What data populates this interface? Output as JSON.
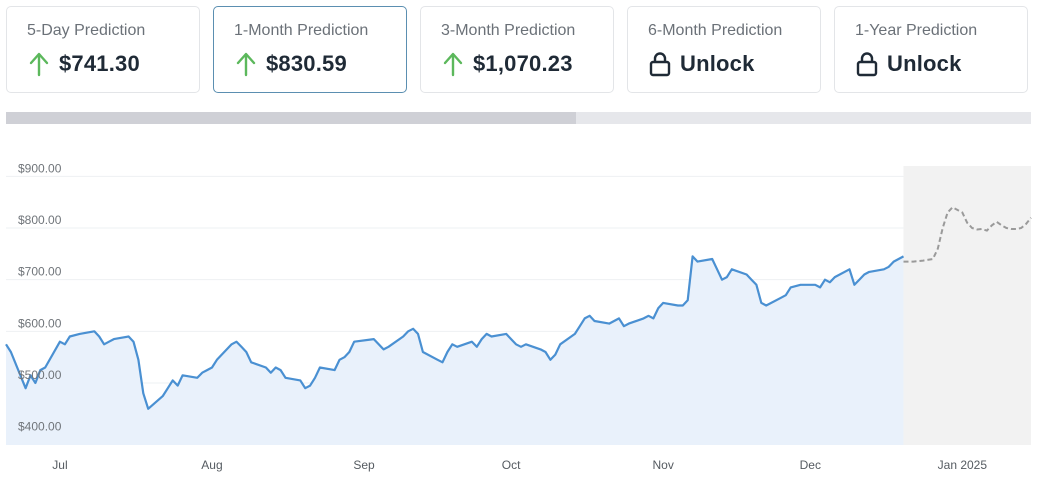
{
  "cards": [
    {
      "label": "5-Day Prediction",
      "value": "$741.30",
      "icon": "arrow-up-icon",
      "active": false
    },
    {
      "label": "1-Month Prediction",
      "value": "$830.59",
      "icon": "arrow-up-icon",
      "active": true
    },
    {
      "label": "3-Month Prediction",
      "value": "$1,070.23",
      "icon": "arrow-up-icon",
      "active": false
    },
    {
      "label": "6-Month Prediction",
      "value": "Unlock",
      "icon": "lock-icon",
      "active": false
    },
    {
      "label": "1-Year Prediction",
      "value": "Unlock",
      "icon": "lock-icon",
      "active": false
    }
  ],
  "colors": {
    "up_arrow": "#5cb85c",
    "line": "#4a90d2",
    "area": "#e9f1fb",
    "forecast_line": "#9a9a9a",
    "forecast_area": "#f2f2f2"
  },
  "scrollbar": {
    "position_fraction": 0.556
  },
  "chart_data": {
    "type": "line",
    "title": "",
    "xlabel": "",
    "ylabel": "",
    "ylim": [
      380,
      920
    ],
    "y_ticks": [
      400,
      500,
      600,
      700,
      800,
      900
    ],
    "y_tick_labels": [
      "$400.00",
      "$500.00",
      "$600.00",
      "$700.00",
      "$800.00",
      "$900.00"
    ],
    "x_range": [
      "2024-06-20",
      "2025-01-15"
    ],
    "x_ticks": [
      {
        "date": "2024-07-01",
        "label": "Jul"
      },
      {
        "date": "2024-08-01",
        "label": "Aug"
      },
      {
        "date": "2024-09-01",
        "label": "Sep"
      },
      {
        "date": "2024-10-01",
        "label": "Oct"
      },
      {
        "date": "2024-11-01",
        "label": "Nov"
      },
      {
        "date": "2024-12-01",
        "label": "Dec"
      },
      {
        "date": "2025-01-01",
        "label": "Jan 2025"
      }
    ],
    "grid": true,
    "series": [
      {
        "kind": "historical",
        "x": [
          "2024-06-20",
          "2024-06-21",
          "2024-06-24",
          "2024-06-25",
          "2024-06-26",
          "2024-06-27",
          "2024-06-28",
          "2024-07-01",
          "2024-07-02",
          "2024-07-03",
          "2024-07-05",
          "2024-07-08",
          "2024-07-09",
          "2024-07-10",
          "2024-07-11",
          "2024-07-12",
          "2024-07-15",
          "2024-07-16",
          "2024-07-17",
          "2024-07-18",
          "2024-07-19",
          "2024-07-22",
          "2024-07-23",
          "2024-07-24",
          "2024-07-25",
          "2024-07-26",
          "2024-07-29",
          "2024-07-30",
          "2024-07-31",
          "2024-08-01",
          "2024-08-02",
          "2024-08-05",
          "2024-08-06",
          "2024-08-07",
          "2024-08-08",
          "2024-08-09",
          "2024-08-12",
          "2024-08-13",
          "2024-08-14",
          "2024-08-15",
          "2024-08-16",
          "2024-08-19",
          "2024-08-20",
          "2024-08-21",
          "2024-08-22",
          "2024-08-23",
          "2024-08-26",
          "2024-08-27",
          "2024-08-28",
          "2024-08-29",
          "2024-08-30",
          "2024-09-03",
          "2024-09-04",
          "2024-09-05",
          "2024-09-06",
          "2024-09-09",
          "2024-09-10",
          "2024-09-11",
          "2024-09-12",
          "2024-09-13",
          "2024-09-16",
          "2024-09-17",
          "2024-09-18",
          "2024-09-19",
          "2024-09-20",
          "2024-09-23",
          "2024-09-24",
          "2024-09-25",
          "2024-09-26",
          "2024-09-27",
          "2024-09-30",
          "2024-10-01",
          "2024-10-02",
          "2024-10-03",
          "2024-10-04",
          "2024-10-07",
          "2024-10-08",
          "2024-10-09",
          "2024-10-10",
          "2024-10-11",
          "2024-10-14",
          "2024-10-15",
          "2024-10-16",
          "2024-10-17",
          "2024-10-18",
          "2024-10-21",
          "2024-10-22",
          "2024-10-23",
          "2024-10-24",
          "2024-10-25",
          "2024-10-28",
          "2024-10-29",
          "2024-10-30",
          "2024-10-31",
          "2024-11-01",
          "2024-11-04",
          "2024-11-05",
          "2024-11-06",
          "2024-11-07",
          "2024-11-08",
          "2024-11-11",
          "2024-11-12",
          "2024-11-13",
          "2024-11-14",
          "2024-11-15",
          "2024-11-18",
          "2024-11-19",
          "2024-11-20",
          "2024-11-21",
          "2024-11-22",
          "2024-11-25",
          "2024-11-26",
          "2024-11-27",
          "2024-11-29",
          "2024-12-02",
          "2024-12-03",
          "2024-12-04",
          "2024-12-05",
          "2024-12-06",
          "2024-12-09",
          "2024-12-10",
          "2024-12-11",
          "2024-12-12",
          "2024-12-13",
          "2024-12-16",
          "2024-12-17",
          "2024-12-18",
          "2024-12-19",
          "2024-12-20"
        ],
        "y": [
          575,
          560,
          490,
          515,
          500,
          525,
          530,
          580,
          575,
          590,
          595,
          600,
          590,
          575,
          580,
          585,
          590,
          580,
          545,
          480,
          450,
          475,
          490,
          505,
          495,
          515,
          510,
          520,
          525,
          530,
          545,
          575,
          580,
          570,
          560,
          540,
          530,
          520,
          530,
          525,
          510,
          505,
          490,
          495,
          510,
          530,
          525,
          545,
          550,
          560,
          580,
          585,
          575,
          565,
          570,
          590,
          600,
          605,
          595,
          560,
          545,
          540,
          560,
          575,
          570,
          580,
          570,
          585,
          595,
          590,
          595,
          585,
          575,
          570,
          575,
          565,
          560,
          545,
          555,
          575,
          595,
          610,
          625,
          630,
          620,
          615,
          620,
          625,
          610,
          615,
          625,
          630,
          625,
          645,
          655,
          650,
          650,
          660,
          745,
          735,
          740,
          720,
          700,
          705,
          720,
          710,
          700,
          690,
          655,
          650,
          665,
          670,
          685,
          690,
          690,
          685,
          700,
          695,
          705,
          720,
          690,
          700,
          710,
          715,
          720,
          725,
          735,
          740,
          745
        ]
      },
      {
        "kind": "forecast",
        "x": [
          "2024-12-20",
          "2024-12-22",
          "2024-12-24",
          "2024-12-26",
          "2024-12-27",
          "2024-12-28",
          "2024-12-29",
          "2024-12-30",
          "2025-01-01",
          "2025-01-02",
          "2025-01-03",
          "2025-01-04",
          "2025-01-05",
          "2025-01-06",
          "2025-01-07",
          "2025-01-08",
          "2025-01-09",
          "2025-01-10",
          "2025-01-11",
          "2025-01-12",
          "2025-01-13",
          "2025-01-14",
          "2025-01-15"
        ],
        "y": [
          735,
          735,
          737,
          740,
          760,
          800,
          830,
          840,
          830,
          810,
          800,
          797,
          798,
          795,
          805,
          812,
          805,
          800,
          798,
          798,
          800,
          808,
          820
        ]
      }
    ]
  }
}
